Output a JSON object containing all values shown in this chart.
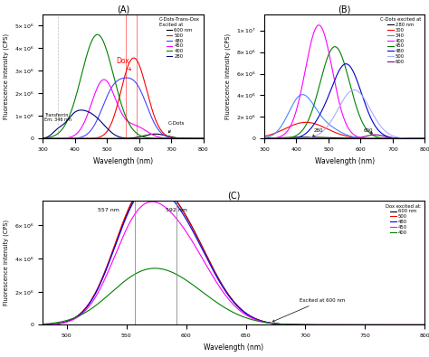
{
  "panel_A": {
    "title": "(A)",
    "xlabel": "Wavelength (nm)",
    "ylabel": "Fluorescence intensity (CPS)",
    "xlim": [
      300,
      800
    ],
    "ylim": [
      0,
      5500000.0
    ],
    "legend_title": "C-Dots-Trans-Dox\nExcited at",
    "legend_entries": [
      "600 nm",
      "500",
      "480",
      "450",
      "400",
      "280"
    ],
    "colors_A": [
      "black",
      "red",
      "#4444FF",
      "magenta",
      "green",
      "#000080"
    ]
  },
  "panel_B": {
    "title": "(B)",
    "xlabel": "Wavelength (nm)",
    "ylabel": "Fluorescence intensity (CPS)",
    "xlim": [
      300,
      800
    ],
    "ylim": [
      0,
      11500000.0
    ],
    "legend_title": "C-Dots excited at",
    "legend_entries": [
      "280 nm",
      "300",
      "340",
      "400",
      "450",
      "480",
      "500",
      "600"
    ],
    "colors_B": [
      "black",
      "red",
      "#4488FF",
      "magenta",
      "green",
      "#0000CC",
      "#AAAAFF",
      "#880088"
    ]
  },
  "panel_C": {
    "title": "(C)",
    "xlabel": "Wavelength (nm)",
    "ylabel": "Fluorescence intensity (CPS)",
    "xlim": [
      480,
      800
    ],
    "ylim": [
      0,
      7500000.0
    ],
    "legend_title": "Dox excited at:",
    "legend_entries": [
      "600 nm",
      "500",
      "480",
      "450",
      "400"
    ],
    "colors_C": [
      "black",
      "red",
      "blue",
      "magenta",
      "green"
    ]
  }
}
